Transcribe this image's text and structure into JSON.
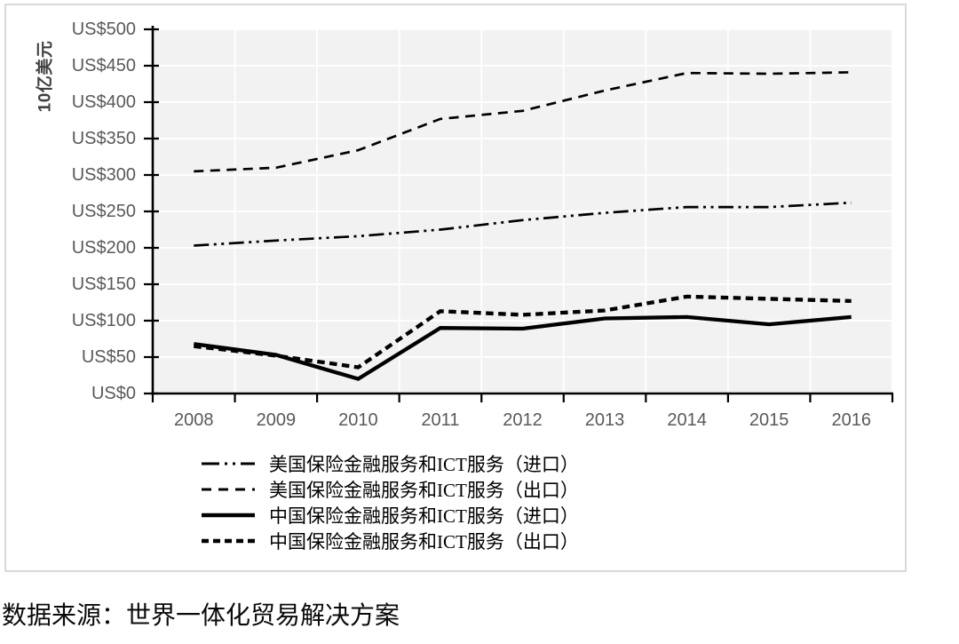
{
  "chart_data": {
    "type": "line",
    "title": "",
    "xlabel": "",
    "ylabel": "10亿美元",
    "ylim": [
      0,
      500
    ],
    "grid": true,
    "legend_position": "bottom-left",
    "line_color": "#000000",
    "categories": [
      "2008",
      "2009",
      "2010",
      "2011",
      "2012",
      "2013",
      "2014",
      "2015",
      "2016"
    ],
    "ytick_values": [
      500,
      450,
      400,
      350,
      300,
      250,
      200,
      150,
      100,
      50,
      0
    ],
    "ytick_labels": [
      "US$500",
      "US$450",
      "US$400",
      "US$350",
      "US$300",
      "US$250",
      "US$200",
      "US$150",
      "US$100",
      "US$50",
      "US$0"
    ],
    "series": [
      {
        "name": "美国保险金融服务和ICT服务（进口）",
        "style": "dash-dot-dot",
        "width": 2.7,
        "values": [
          203,
          210,
          216,
          225,
          238,
          248,
          256,
          256,
          262
        ]
      },
      {
        "name": "美国保险金融服务和ICT服务（出口）",
        "style": "dashed",
        "width": 2.7,
        "values": [
          305,
          310,
          334,
          377,
          388,
          416,
          440,
          439,
          441
        ]
      },
      {
        "name": "中国保险金融服务和ICT服务（进口）",
        "style": "solid",
        "width": 4.3,
        "values": [
          68,
          53,
          20,
          90,
          89,
          103,
          105,
          95,
          105
        ]
      },
      {
        "name": "中国保险金融服务和ICT服务（出口）",
        "style": "dense-dash",
        "width": 4.3,
        "values": [
          65,
          52,
          36,
          113,
          108,
          114,
          133,
          130,
          127
        ]
      }
    ]
  },
  "source_note": "数据来源：世界一体化贸易解决方案",
  "colors": {
    "plot_bg": "#f2f2f2",
    "gridline": "#ffffff",
    "axis": "#000000",
    "tick_text": "#595959",
    "axis_title": "#404040",
    "chart_border": "#d9d9d9"
  }
}
